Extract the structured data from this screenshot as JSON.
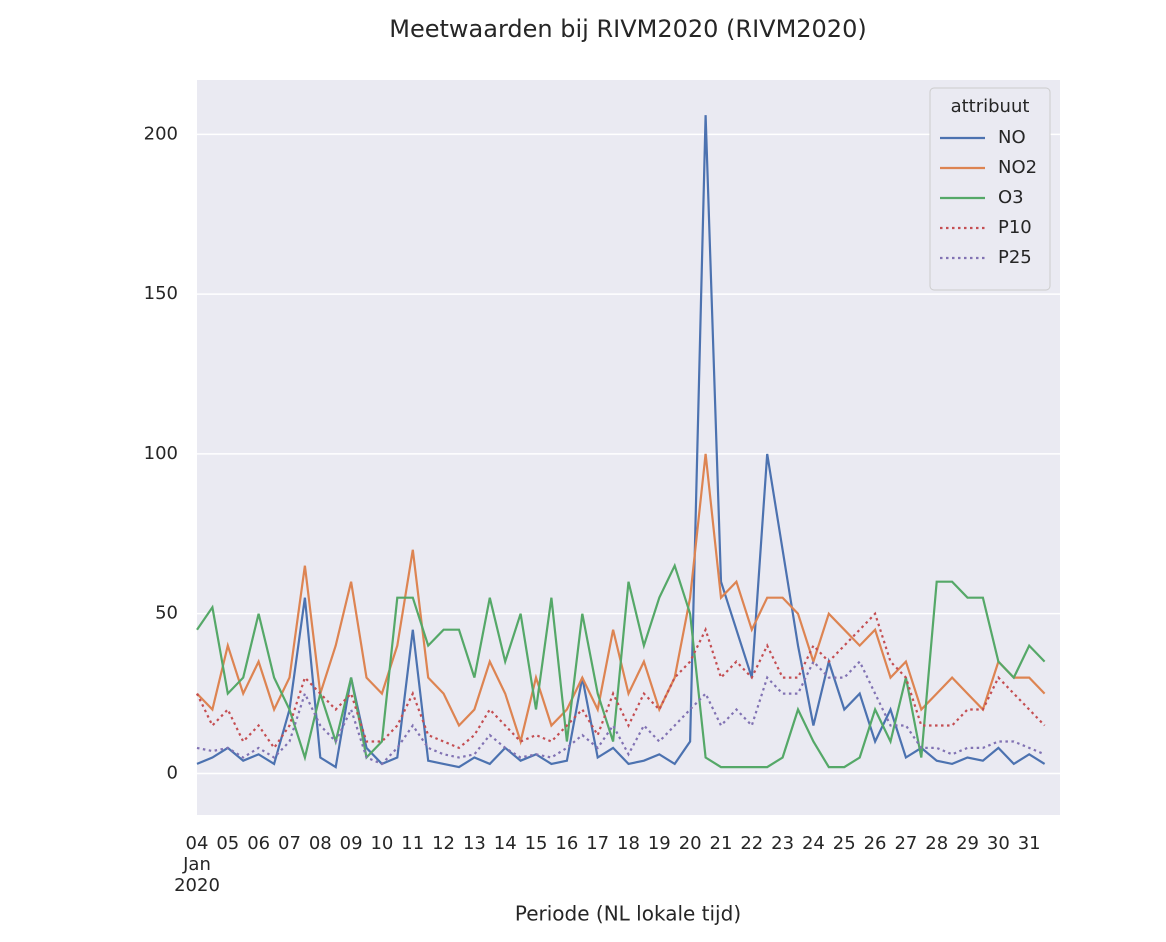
{
  "chart_data": {
    "type": "line",
    "title": "Meetwaarden bij RIVM2020 (RIVM2020)",
    "xlabel": "Periode (NL lokale tijd)",
    "x": [
      4,
      4.5,
      5,
      5.5,
      6,
      6.5,
      7,
      7.5,
      8,
      8.5,
      9,
      9.5,
      10,
      10.5,
      11,
      11.5,
      12,
      12.5,
      13,
      13.5,
      14,
      14.5,
      15,
      15.5,
      16,
      16.5,
      17,
      17.5,
      18,
      18.5,
      19,
      19.5,
      20,
      20.5,
      21,
      21.5,
      22,
      22.5,
      23,
      23.5,
      24,
      24.5,
      25,
      25.5,
      26,
      26.5,
      27,
      27.5,
      28,
      28.5,
      29,
      29.5,
      30,
      30.5,
      31,
      31.5
    ],
    "xlim": [
      4,
      32
    ],
    "xticks": [
      {
        "value": 4,
        "label": "04\nJan\n2020"
      },
      {
        "value": 5,
        "label": "05"
      },
      {
        "value": 6,
        "label": "06"
      },
      {
        "value": 7,
        "label": "07"
      },
      {
        "value": 8,
        "label": "08"
      },
      {
        "value": 9,
        "label": "09"
      },
      10,
      11,
      12,
      13,
      14,
      15,
      16,
      17,
      18,
      19,
      20,
      21,
      22,
      23,
      24,
      25,
      26,
      27,
      28,
      29,
      30,
      31
    ],
    "ylim": [
      -13,
      217
    ],
    "yticks": [
      0,
      50,
      100,
      150,
      200
    ],
    "grid": true,
    "legend_title": "attribuut",
    "legend": "upper right",
    "series": [
      {
        "name": "NO",
        "color": "#4c72b0",
        "linestyle": "solid",
        "values": [
          3,
          5,
          8,
          4,
          6,
          3,
          20,
          55,
          5,
          2,
          30,
          8,
          3,
          5,
          45,
          4,
          3,
          2,
          5,
          3,
          8,
          4,
          6,
          3,
          4,
          30,
          5,
          8,
          3,
          4,
          6,
          3,
          10,
          206,
          60,
          45,
          30,
          100,
          70,
          40,
          15,
          35,
          20,
          25,
          10,
          20,
          5,
          8,
          4,
          3,
          5,
          4,
          8,
          3,
          6,
          3
        ]
      },
      {
        "name": "NO2",
        "color": "#dd8452",
        "linestyle": "solid",
        "values": [
          25,
          20,
          40,
          25,
          35,
          20,
          30,
          65,
          25,
          40,
          60,
          30,
          25,
          40,
          70,
          30,
          25,
          15,
          20,
          35,
          25,
          10,
          30,
          15,
          20,
          30,
          20,
          45,
          25,
          35,
          20,
          30,
          55,
          100,
          55,
          60,
          45,
          55,
          55,
          50,
          35,
          50,
          45,
          40,
          45,
          30,
          35,
          20,
          25,
          30,
          25,
          20,
          35,
          30,
          30,
          25
        ]
      },
      {
        "name": "O3",
        "color": "#55a868",
        "linestyle": "solid",
        "values": [
          45,
          52,
          25,
          30,
          50,
          30,
          20,
          5,
          25,
          10,
          30,
          5,
          10,
          55,
          55,
          40,
          45,
          45,
          30,
          55,
          35,
          50,
          20,
          55,
          10,
          50,
          25,
          10,
          60,
          40,
          55,
          65,
          50,
          5,
          2,
          2,
          2,
          2,
          5,
          20,
          10,
          2,
          2,
          5,
          20,
          10,
          30,
          5,
          60,
          60,
          55,
          55,
          35,
          30,
          40,
          35
        ]
      },
      {
        "name": "P10",
        "color": "#c44e52",
        "linestyle": "dotted",
        "values": [
          25,
          15,
          20,
          10,
          15,
          8,
          15,
          30,
          25,
          20,
          25,
          10,
          10,
          15,
          25,
          12,
          10,
          8,
          12,
          20,
          15,
          10,
          12,
          10,
          15,
          20,
          12,
          25,
          15,
          25,
          20,
          30,
          35,
          45,
          30,
          35,
          30,
          40,
          30,
          30,
          40,
          35,
          40,
          45,
          50,
          35,
          30,
          15,
          15,
          15,
          20,
          20,
          30,
          25,
          20,
          15
        ]
      },
      {
        "name": "P25",
        "color": "#8172b3",
        "linestyle": "dotted",
        "values": [
          8,
          7,
          8,
          5,
          8,
          5,
          10,
          25,
          15,
          10,
          20,
          5,
          3,
          8,
          15,
          8,
          6,
          5,
          6,
          12,
          8,
          5,
          6,
          5,
          8,
          12,
          8,
          15,
          6,
          15,
          10,
          15,
          20,
          25,
          15,
          20,
          15,
          30,
          25,
          25,
          35,
          30,
          30,
          35,
          25,
          15,
          15,
          8,
          8,
          6,
          8,
          8,
          10,
          10,
          8,
          6
        ]
      }
    ]
  }
}
